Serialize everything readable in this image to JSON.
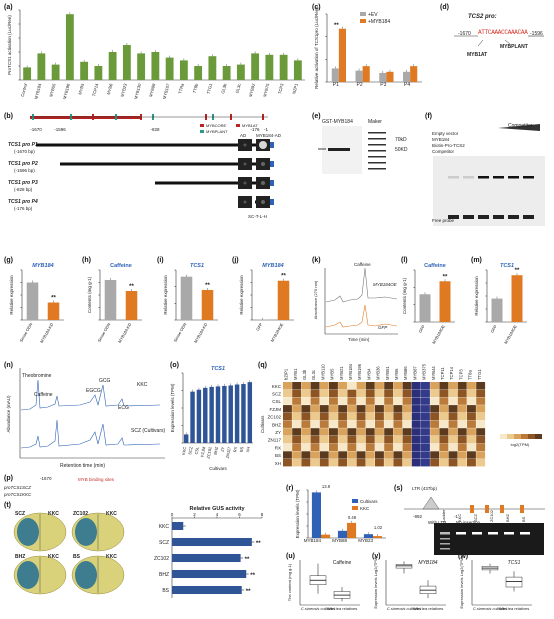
{
  "colors": {
    "green": "#6a9a3a",
    "orange": "#e07a22",
    "gray": "#a9a9a9",
    "blue": "#2f62b6",
    "black": "#111111",
    "heatLow": "#f3e2c2",
    "heatHigh": "#5b3a1d",
    "heatNeg": "#3a3f86"
  },
  "panels": {
    "a": "(a)",
    "b": "(b)",
    "c": "(c)",
    "d": "(d)",
    "e": "(e)",
    "f": "(f)",
    "g": "(g)",
    "h": "(h)",
    "i": "(i)",
    "j": "(j)",
    "k": "(k)",
    "l": "(l)",
    "m": "(m)",
    "n": "(n)",
    "o": "(o)",
    "p": "(p)",
    "q": "(q)",
    "r": "(r)",
    "s": "(s)",
    "t": "(t)",
    "u": "(u)",
    "v": "(v)",
    "w": "(w)"
  },
  "chart_data": [
    {
      "id": "a",
      "type": "bar",
      "ylabel": "ProTCS1 activation (Luc/Ren)",
      "ylim": [
        0,
        5
      ],
      "categories": [
        "Control",
        "MYB184",
        "MYB55",
        "MYB196",
        "MYB5",
        "TCP14",
        "MYB6",
        "MYB23",
        "MYB130",
        "MYB98",
        "MYB107",
        "TTRa",
        "TT8b",
        "TTG1",
        "GL3b",
        "GL3c",
        "MYB92",
        "MYB75",
        "TCP3",
        "NZP1"
      ],
      "values": [
        0.9,
        1.9,
        1.1,
        4.7,
        1.3,
        1.0,
        2.0,
        2.5,
        1.9,
        2.0,
        1.6,
        1.4,
        1.0,
        1.7,
        1.0,
        1.1,
        1.9,
        1.8,
        1.8,
        1.4
      ]
    },
    {
      "id": "c",
      "type": "bar",
      "ylabel": "Relative activation of TCS1pro (Luc/Ren)",
      "ylim": [
        0,
        6
      ],
      "categories": [
        "P1",
        "P2",
        "P3",
        "P4"
      ],
      "series": [
        {
          "name": "+EV",
          "values": [
            1.2,
            1.0,
            0.8,
            0.9
          ]
        },
        {
          "name": "+MYB184",
          "values": [
            4.7,
            1.4,
            0.9,
            1.4
          ]
        }
      ]
    },
    {
      "id": "g",
      "type": "bar",
      "title": "MYB184",
      "ylabel": "Relative expression",
      "ylim": [
        0,
        0.02
      ],
      "categories": [
        "Sense ODN",
        "MYB184-KD"
      ],
      "values": [
        0.015,
        0.007
      ]
    },
    {
      "id": "h",
      "type": "bar",
      "title": "Caffeine",
      "ylabel": "Contents (mg g-1)",
      "ylim": [
        0,
        50
      ],
      "categories": [
        "Sense ODN",
        "MYB184-KD"
      ],
      "values": [
        40,
        29
      ]
    },
    {
      "id": "i",
      "type": "bar",
      "title": "TCS1",
      "ylabel": "Relative expression",
      "ylim": [
        0,
        3
      ],
      "categories": [
        "Sense ODN",
        "MYB184-KD"
      ],
      "values": [
        2.6,
        1.8
      ]
    },
    {
      "id": "j",
      "type": "bar",
      "title": "MYB184",
      "ylabel": "Relative expression",
      "ylim": [
        0,
        1.4
      ],
      "categories": [
        "GFP",
        "MYB184OE"
      ],
      "values": [
        0.01,
        1.1
      ]
    },
    {
      "id": "l",
      "type": "bar",
      "title": "Caffeine",
      "ylabel": "Contents (mg g-1)",
      "ylim": [
        0,
        6
      ],
      "categories": [
        "GFP",
        "MYB184OE"
      ],
      "values": [
        3.2,
        4.7
      ]
    },
    {
      "id": "m",
      "type": "bar",
      "title": "TCS1",
      "ylabel": "Relative expression",
      "ylim": [
        0,
        1
      ],
      "categories": [
        "GFP",
        "MYB184OE"
      ],
      "values": [
        0.45,
        0.9
      ]
    },
    {
      "id": "o",
      "type": "bar",
      "title": "TCS1",
      "ylabel": "Expression levels (TPM)",
      "xlabel": "Cultivars",
      "categories": [
        "KKC",
        "SCZ",
        "CSL",
        "FZJM",
        "ZC102",
        "BHZ",
        "ZY",
        "ZN117",
        "RX",
        "BS",
        "XH"
      ],
      "values": [
        900,
        5400,
        5600,
        5800,
        5900,
        5950,
        6000,
        6050,
        6150,
        6200,
        6400
      ]
    },
    {
      "id": "r",
      "type": "bar",
      "ylabel": "Expression levels (TPM)",
      "ylim": [
        0,
        200
      ],
      "categories": [
        "MYB184",
        "MYB88",
        "MYB23"
      ],
      "series": [
        {
          "name": "Cultivars",
          "values": [
            190,
            30,
            16
          ]
        },
        {
          "name": "KKC",
          "values": [
            14,
            63,
            8
          ]
        }
      ],
      "annotations": [
        "13.9",
        "0.48",
        "1.02"
      ]
    },
    {
      "id": "t",
      "type": "bar",
      "title": "Relative GUS activity",
      "ylim": [
        0,
        8
      ],
      "categories": [
        "KKC",
        "SCZ",
        "ZC102",
        "BHZ",
        "BS"
      ],
      "values": [
        1.0,
        7.1,
        6.1,
        6.6,
        6.2
      ]
    }
  ],
  "labels": {
    "b_regions": [
      "TCS1 pro P1",
      "TCS1 pro P2",
      "TCS1 pro P3",
      "TCS1 pro P4"
    ],
    "b_sizes": [
      "(-1670 bp)",
      "(-1596 bp)",
      "(-828 bp)",
      "(-176 bp)"
    ],
    "b_ticks": [
      "-1670",
      "-1596",
      "-828",
      "-176",
      "-1"
    ],
    "b_legend": [
      "MYBCORE",
      "MYB1AT",
      "MYBPLANT"
    ],
    "b_cols": [
      "AD",
      "MYB184-AD"
    ],
    "b_medium": "SC-T-L-H",
    "d_title": "TCS2 pro:",
    "d_left": "-1670",
    "d_right": "-1596",
    "d_seq": "ATTCAAACCAAACAA",
    "d_motif1": "MYB1AT",
    "d_motif2": "MYBPLANT",
    "e_lane1": "GST-MYB184",
    "e_lane2": "Maker",
    "e_kd1": "70kD",
    "e_kd2": "50KD",
    "f_rows": [
      "Empty vector",
      "MYB184",
      "Biotin-Pro-TCS2",
      "Competitor"
    ],
    "f_comp": "Competitor",
    "f_free": "Free probe",
    "k_ylab": "Absorbance (270 nm)",
    "k_peak": "Caffeine",
    "k_trace1": "MYB184OE",
    "k_trace2": "GFP",
    "k_xlab": "Time (min)",
    "n_labels": [
      "Theobromine",
      "Caffeine",
      "EGCG",
      "GCG",
      "ECG",
      "KKC",
      "SCZ (Cultivars)"
    ],
    "n_xlab": "Retention time (min)",
    "n_ylab": "Abundance (mAU)",
    "p_site": "MYB binding sites",
    "p_row1": "proTCS1SCZ",
    "p_row2": "proTCS1KKC",
    "p_pos": "-1670",
    "q_cols": [
      "bZIP1",
      "MYB1",
      "GL3b",
      "GL3c",
      "MYB110",
      "MYB5",
      "MYB21",
      "MYB184",
      "MYB196",
      "MYB4",
      "MYB36",
      "MYB51",
      "MYB6",
      "MYB86",
      "MYB87",
      "MYB375",
      "MYB44",
      "TCP11",
      "TCP14",
      "TCP3",
      "TT8a",
      "TTG1"
    ],
    "q_rows": [
      "KKC",
      "SCZ",
      "CSL",
      "FZJM",
      "ZC102",
      "BHZ",
      "ZY",
      "ZN117",
      "RX",
      "BS",
      "XH"
    ],
    "q_axis": "Cultivars",
    "q_scale_label": "log2(TPM)",
    "r_legend": [
      "Cultivars",
      "KKC"
    ],
    "s_ltr": "LTR (437bp)",
    "s_pos1": "-992",
    "s_pos2": "-1",
    "s_with": "With LTR",
    "s_no": "No insertion",
    "s_lanes": [
      "Ladder",
      "KKC",
      "SCZ",
      "ZC102",
      "BHZ",
      "BS"
    ],
    "s_ladder": [
      "1000",
      "750",
      "500"
    ],
    "t_pairs": [
      [
        "SCZ",
        "KKC"
      ],
      [
        "ZC102",
        "KKC"
      ],
      [
        "BHZ",
        "KKC"
      ],
      [
        "BS",
        "KKC"
      ]
    ],
    "u_title": "Caffeine",
    "u_ylab": "The content (mg g-1)",
    "u_cats": [
      "C.sinensis cultivars",
      "Wild tea relatives"
    ],
    "v_title": "MYB184",
    "v_ylab": "Expression levels Log2(TPM)",
    "v_cats": [
      "C.sinensis cultivars",
      "Wild tea relatives"
    ],
    "w_title": "TCS1",
    "w_ylab": "Expression levels Log2(TPM)",
    "w_cats": [
      "C.sinensis cultivars",
      "Wild tea relatives"
    ],
    "sig": "**"
  }
}
